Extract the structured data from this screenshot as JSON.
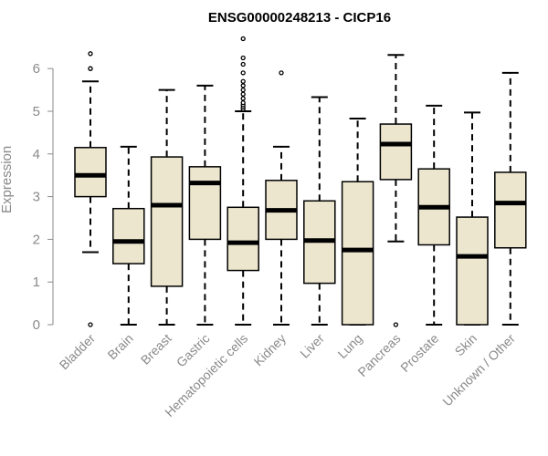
{
  "chart_data": {
    "type": "boxplot",
    "title": "ENSG00000248213 - CICP16",
    "xlabel": "",
    "ylabel": "Expression",
    "ylim": [
      0,
      6.8
    ],
    "yticks": [
      "0",
      "1",
      "2",
      "3",
      "4",
      "5",
      "6"
    ],
    "box_fill": "#ede6cf",
    "categories": [
      "Bladder",
      "Brain",
      "Breast",
      "Gastric",
      "Hematopoietic cells",
      "Kidney",
      "Liver",
      "Lung",
      "Pancreas",
      "Prostate",
      "Skin",
      "Unknown / Other"
    ],
    "boxes": [
      {
        "whisker_low": 1.7,
        "q1": 3.0,
        "median": 3.5,
        "q3": 4.15,
        "whisker_high": 5.7,
        "outliers": [
          6.0,
          6.0,
          6.35,
          0.0
        ]
      },
      {
        "whisker_low": 0.0,
        "q1": 1.43,
        "median": 1.95,
        "q3": 2.72,
        "whisker_high": 4.17,
        "outliers": []
      },
      {
        "whisker_low": 0.0,
        "q1": 0.9,
        "median": 2.8,
        "q3": 3.93,
        "whisker_high": 5.5,
        "outliers": []
      },
      {
        "whisker_low": 0.0,
        "q1": 2.0,
        "median": 3.32,
        "q3": 3.7,
        "whisker_high": 5.6,
        "outliers": []
      },
      {
        "whisker_low": 0.0,
        "q1": 1.27,
        "median": 1.92,
        "q3": 2.75,
        "whisker_high": 5.0,
        "outliers": [
          5.05,
          5.1,
          5.15,
          5.2,
          5.3,
          5.4,
          5.5,
          5.6,
          5.7,
          5.9,
          6.1,
          6.25,
          6.7
        ]
      },
      {
        "whisker_low": 0.0,
        "q1": 2.0,
        "median": 2.68,
        "q3": 3.38,
        "whisker_high": 4.17,
        "outliers": [
          5.9
        ]
      },
      {
        "whisker_low": 0.0,
        "q1": 0.97,
        "median": 1.97,
        "q3": 2.9,
        "whisker_high": 5.33,
        "outliers": []
      },
      {
        "whisker_low": 0.0,
        "q1": 0.0,
        "median": 1.75,
        "q3": 3.35,
        "whisker_high": 4.83,
        "outliers": []
      },
      {
        "whisker_low": 1.95,
        "q1": 3.4,
        "median": 4.23,
        "q3": 4.7,
        "whisker_high": 6.32,
        "outliers": [
          0.0
        ]
      },
      {
        "whisker_low": 0.0,
        "q1": 1.87,
        "median": 2.75,
        "q3": 3.65,
        "whisker_high": 5.13,
        "outliers": []
      },
      {
        "whisker_low": 0.0,
        "q1": 0.0,
        "median": 1.6,
        "q3": 2.52,
        "whisker_high": 4.97,
        "outliers": []
      },
      {
        "whisker_low": 0.0,
        "q1": 1.8,
        "median": 2.85,
        "q3": 3.57,
        "whisker_high": 5.9,
        "outliers": []
      }
    ]
  }
}
